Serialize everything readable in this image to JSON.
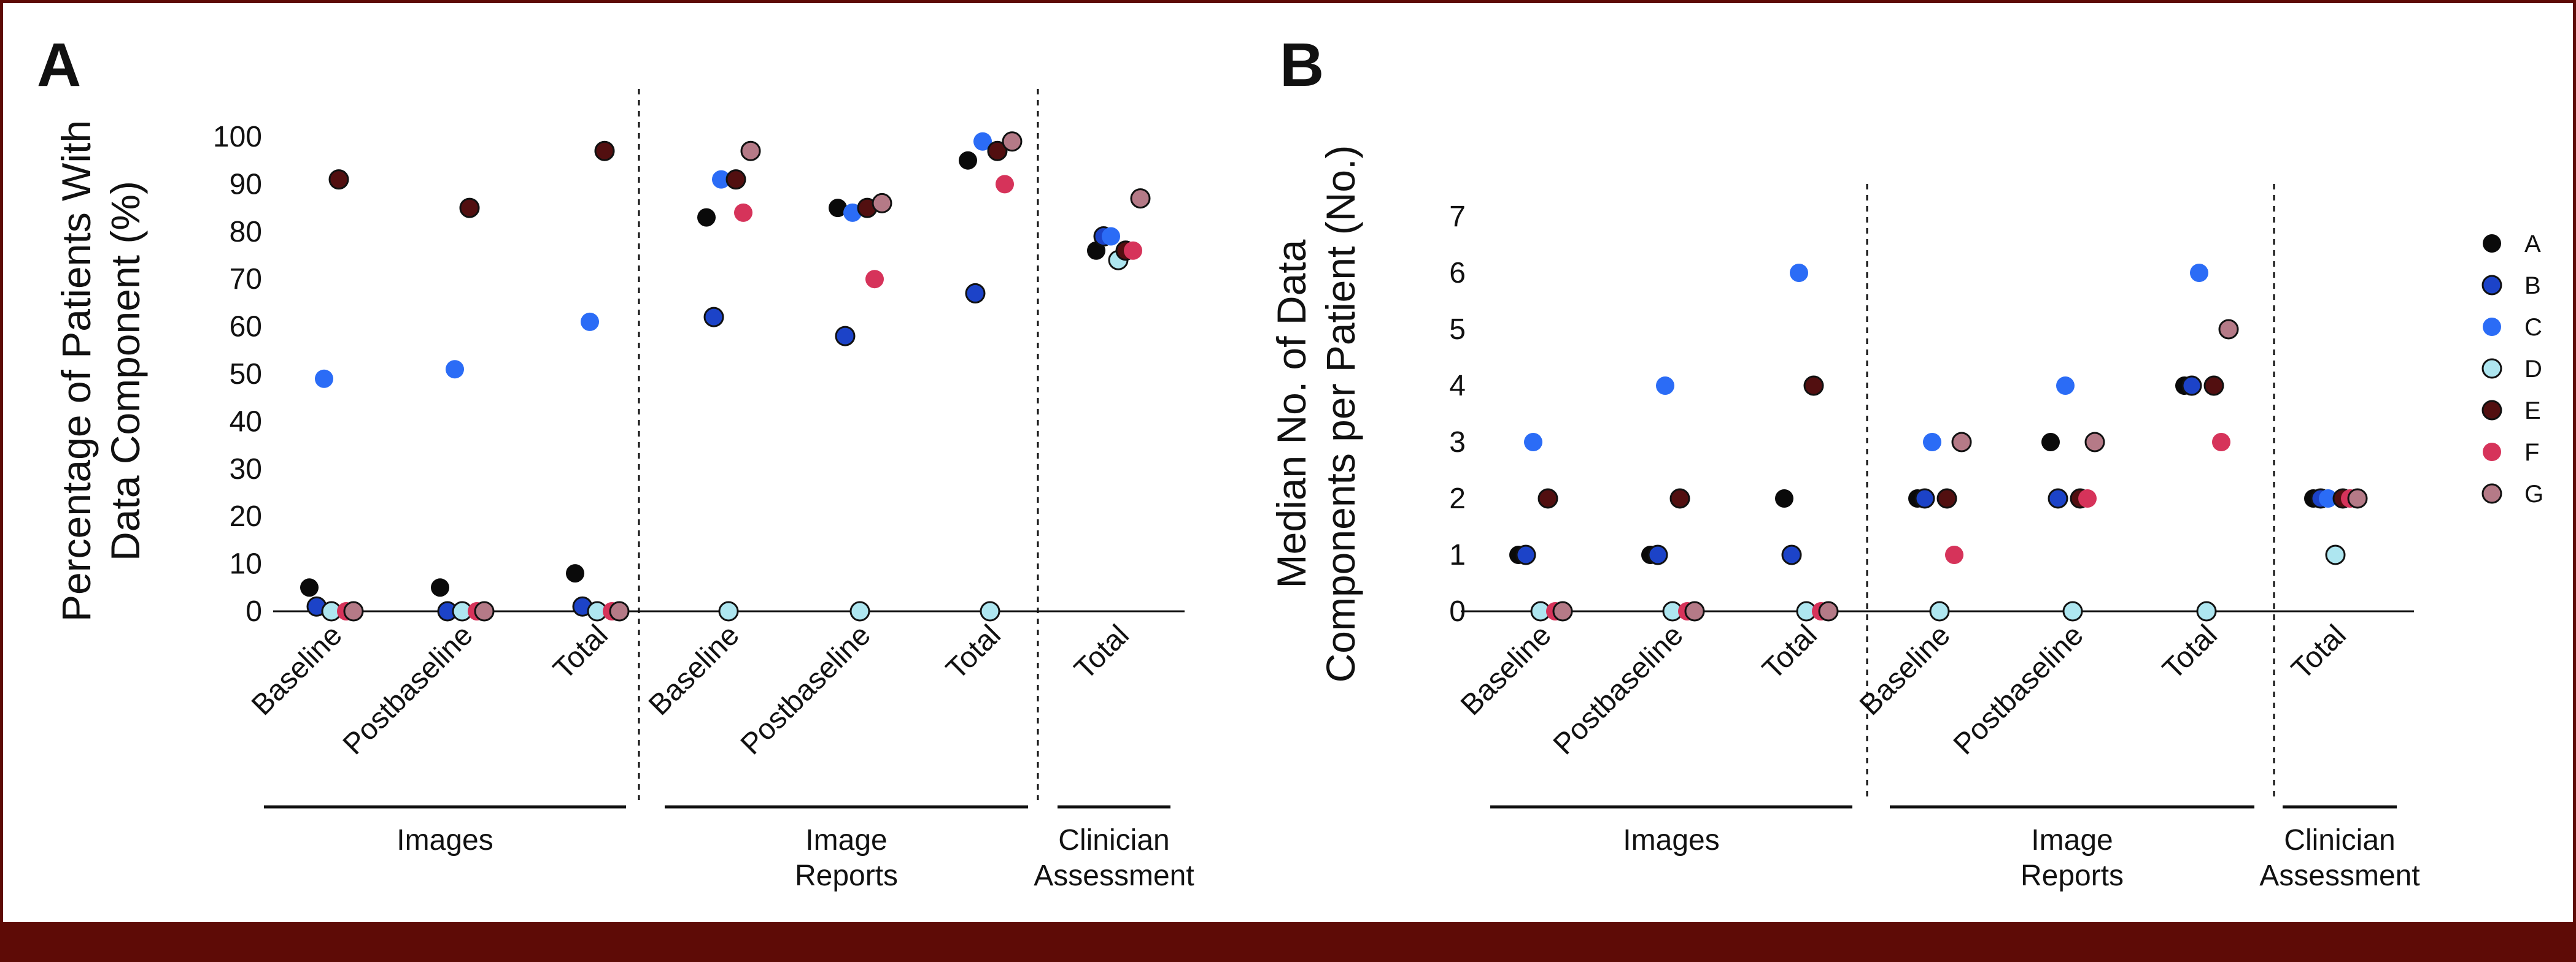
{
  "colors": {
    "A": "#0a0a0a",
    "B": "#1c43c8",
    "C": "#2b6cf6",
    "D": "#aee6f0",
    "E": "#520f10",
    "F": "#d6335a",
    "G": "#b57a87",
    "frame": "#5e0b06"
  },
  "legend": {
    "placement": "right",
    "entries": [
      "A",
      "B",
      "C",
      "D",
      "E",
      "F",
      "G"
    ]
  },
  "chart_data": [
    {
      "type": "scatter",
      "panel": "A",
      "ylabel": "Percentage of Patients With Data Component (%)",
      "ylabel_lines": [
        "Percentage of Patients With",
        "Data Component (%)"
      ],
      "ylim": [
        0,
        100
      ],
      "yticks": [
        0,
        10,
        20,
        30,
        40,
        50,
        60,
        70,
        80,
        90,
        100
      ],
      "categories": [
        "Baseline",
        "Postbaseline",
        "Total",
        "Baseline",
        "Postbaseline",
        "Total",
        "Total"
      ],
      "groups": [
        {
          "label": "Images",
          "label_lines": [
            "Images"
          ],
          "categories": [
            0,
            1,
            2
          ]
        },
        {
          "label": "Image Reports",
          "label_lines": [
            "Image",
            "Reports"
          ],
          "categories": [
            3,
            4,
            5
          ]
        },
        {
          "label": "Clinician Assessment",
          "label_lines": [
            "Clinician",
            "Assessment"
          ],
          "categories": [
            6
          ]
        }
      ],
      "series": [
        {
          "name": "A",
          "values": [
            5,
            5,
            8,
            83,
            85,
            95,
            76
          ]
        },
        {
          "name": "B",
          "values": [
            1,
            0,
            1,
            62,
            58,
            67,
            79
          ]
        },
        {
          "name": "C",
          "values": [
            49,
            51,
            61,
            91,
            84,
            99,
            79
          ]
        },
        {
          "name": "D",
          "values": [
            0,
            0,
            0,
            0,
            0,
            0,
            74
          ]
        },
        {
          "name": "E",
          "values": [
            91,
            85,
            97,
            91,
            85,
            97,
            76
          ]
        },
        {
          "name": "F",
          "values": [
            0,
            0,
            0,
            84,
            70,
            90,
            76
          ]
        },
        {
          "name": "G",
          "values": [
            0,
            0,
            0,
            97,
            86,
            99,
            87
          ]
        }
      ]
    },
    {
      "type": "scatter",
      "panel": "B",
      "ylabel": "Median No. of Data Components per Patient (No.)",
      "ylabel_lines": [
        "Median No. of Data",
        "Components per Patient (No.)"
      ],
      "ylim": [
        0,
        7
      ],
      "yticks": [
        0,
        1,
        2,
        3,
        4,
        5,
        6,
        7
      ],
      "categories": [
        "Baseline",
        "Postbaseline",
        "Total",
        "Baseline",
        "Postbaseline",
        "Total",
        "Total"
      ],
      "groups": [
        {
          "label": "Images",
          "label_lines": [
            "Images"
          ],
          "categories": [
            0,
            1,
            2
          ]
        },
        {
          "label": "Image Reports",
          "label_lines": [
            "Image",
            "Reports"
          ],
          "categories": [
            3,
            4,
            5
          ]
        },
        {
          "label": "Clinician Assessment",
          "label_lines": [
            "Clinician",
            "Assessment"
          ],
          "categories": [
            6
          ]
        }
      ],
      "series": [
        {
          "name": "A",
          "values": [
            1,
            1,
            2,
            2,
            3,
            4,
            2
          ]
        },
        {
          "name": "B",
          "values": [
            1,
            1,
            1,
            2,
            2,
            4,
            2
          ]
        },
        {
          "name": "C",
          "values": [
            3,
            4,
            6,
            3,
            4,
            6,
            2
          ]
        },
        {
          "name": "D",
          "values": [
            0,
            0,
            0,
            0,
            0,
            0,
            1
          ]
        },
        {
          "name": "E",
          "values": [
            2,
            2,
            4,
            2,
            2,
            4,
            2
          ]
        },
        {
          "name": "F",
          "values": [
            0,
            0,
            0,
            1,
            2,
            3,
            2
          ]
        },
        {
          "name": "G",
          "values": [
            0,
            0,
            0,
            3,
            3,
            5,
            2
          ]
        }
      ]
    }
  ]
}
